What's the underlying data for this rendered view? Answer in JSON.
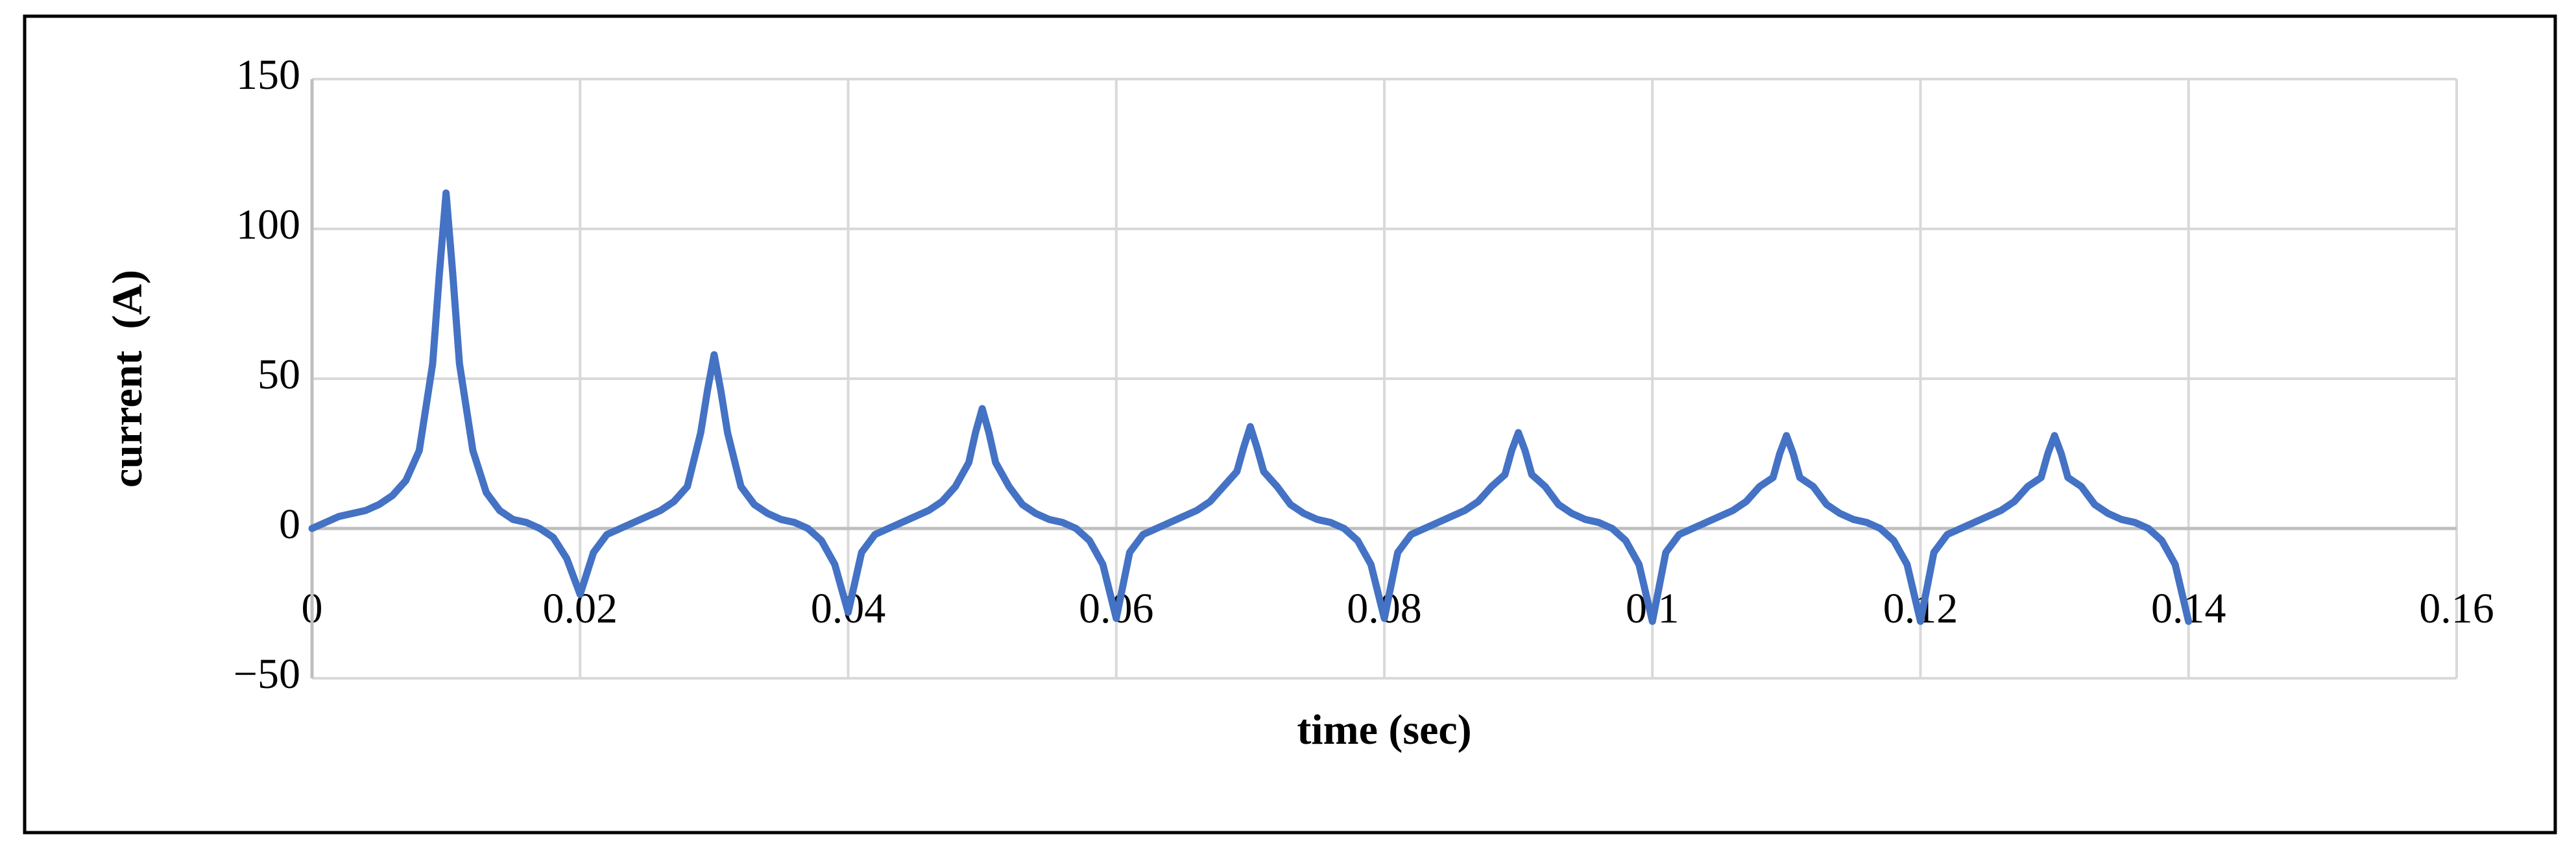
{
  "chart_data": {
    "type": "line",
    "x_label": "time (sec)",
    "y_label": "current  (A)",
    "x": [
      0,
      0.001,
      0.002,
      0.003,
      0.004,
      0.005,
      0.006,
      0.007,
      0.008,
      0.009,
      0.0095,
      0.01,
      0.0105,
      0.011,
      0.012,
      0.013,
      0.014,
      0.015,
      0.016,
      0.017,
      0.018,
      0.019,
      0.02,
      0.021,
      0.022,
      0.023,
      0.024,
      0.025,
      0.026,
      0.027,
      0.028,
      0.029,
      0.0295,
      0.03,
      0.0305,
      0.031,
      0.032,
      0.033,
      0.034,
      0.035,
      0.036,
      0.037,
      0.038,
      0.039,
      0.04,
      0.041,
      0.042,
      0.043,
      0.044,
      0.045,
      0.046,
      0.047,
      0.048,
      0.049,
      0.0495,
      0.05,
      0.0505,
      0.051,
      0.052,
      0.053,
      0.054,
      0.055,
      0.056,
      0.057,
      0.058,
      0.059,
      0.06,
      0.061,
      0.062,
      0.063,
      0.064,
      0.065,
      0.066,
      0.067,
      0.068,
      0.069,
      0.0695,
      0.07,
      0.0705,
      0.071,
      0.072,
      0.073,
      0.074,
      0.075,
      0.076,
      0.077,
      0.078,
      0.079,
      0.08,
      0.081,
      0.082,
      0.083,
      0.084,
      0.085,
      0.086,
      0.087,
      0.088,
      0.089,
      0.0895,
      0.09,
      0.0905,
      0.091,
      0.092,
      0.093,
      0.094,
      0.095,
      0.096,
      0.097,
      0.098,
      0.099,
      0.1,
      0.101,
      0.102,
      0.103,
      0.104,
      0.105,
      0.106,
      0.107,
      0.108,
      0.109,
      0.1095,
      0.11,
      0.1105,
      0.111,
      0.112,
      0.113,
      0.114,
      0.115,
      0.116,
      0.117,
      0.118,
      0.119,
      0.12,
      0.121,
      0.122,
      0.123,
      0.124,
      0.125,
      0.126,
      0.127,
      0.128,
      0.129,
      0.1295,
      0.13,
      0.1305,
      0.131,
      0.132,
      0.133,
      0.134,
      0.135,
      0.136,
      0.137,
      0.138,
      0.139,
      0.14
    ],
    "values": [
      0,
      2,
      4,
      5,
      6,
      8,
      11,
      16,
      26,
      55,
      85,
      112,
      85,
      55,
      26,
      12,
      6,
      3,
      2,
      0,
      -3,
      -10,
      -22,
      -8,
      -2,
      0,
      2,
      4,
      6,
      9,
      14,
      32,
      46,
      58,
      46,
      32,
      14,
      8,
      5,
      3,
      2,
      0,
      -4,
      -12,
      -28,
      -8,
      -2,
      0,
      2,
      4,
      6,
      9,
      14,
      22,
      32,
      40,
      32,
      22,
      14,
      8,
      5,
      3,
      2,
      0,
      -4,
      -12,
      -30,
      -8,
      -2,
      0,
      2,
      4,
      6,
      9,
      14,
      19,
      27,
      34,
      27,
      19,
      14,
      8,
      5,
      3,
      2,
      0,
      -4,
      -12,
      -30,
      -8,
      -2,
      0,
      2,
      4,
      6,
      9,
      14,
      18,
      26,
      32,
      26,
      18,
      14,
      8,
      5,
      3,
      2,
      0,
      -4,
      -12,
      -31,
      -8,
      -2,
      0,
      2,
      4,
      6,
      9,
      14,
      17,
      25,
      31,
      25,
      17,
      14,
      8,
      5,
      3,
      2,
      0,
      -4,
      -12,
      -31,
      -8,
      -2,
      0,
      2,
      4,
      6,
      9,
      14,
      17,
      25,
      31,
      25,
      17,
      14,
      8,
      5,
      3,
      2,
      0,
      -4,
      -12,
      -31
    ],
    "color": "#4472c4",
    "xlim": [
      0,
      0.16
    ],
    "xticks": [
      0,
      0.02,
      0.04,
      0.06,
      0.08,
      0.1,
      0.12,
      0.14,
      0.16
    ],
    "ylim": [
      -50,
      150
    ],
    "yticks": [
      {
        "value": -50,
        "label": "−50"
      },
      0,
      50,
      100,
      150
    ],
    "grid": true
  }
}
